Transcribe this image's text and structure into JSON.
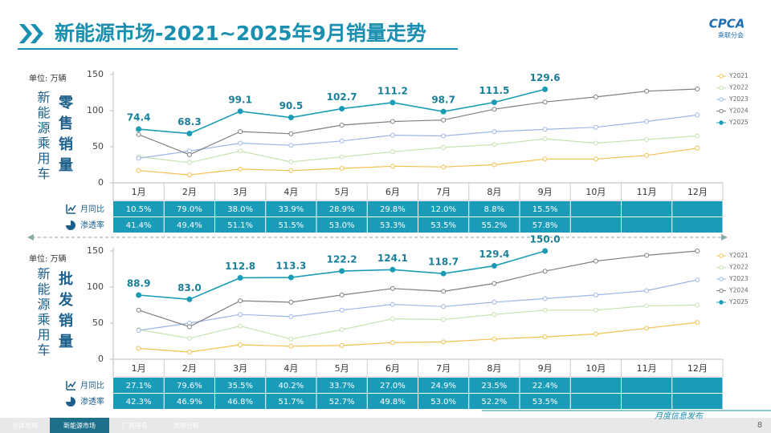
{
  "header": {
    "title": "新能源市场-2021~2025年9月销量走势",
    "logo": "CPCA",
    "logo_sub": "乘联分会"
  },
  "unit": "单位: 万辆",
  "side_label": "新能源乘用车",
  "chart_data": [
    {
      "type": "line",
      "label": "零售销量",
      "categories": [
        "1月",
        "2月",
        "3月",
        "4月",
        "5月",
        "6月",
        "7月",
        "8月",
        "9月",
        "10月",
        "11月",
        "12月"
      ],
      "ylim": [
        0,
        150
      ],
      "yticks": [
        0,
        50,
        100,
        150
      ],
      "grid": false,
      "legend": "right",
      "series": [
        {
          "name": "Y2021",
          "color": "#f2c14e",
          "marker": "open",
          "values": [
            17,
            11,
            19,
            17,
            20,
            23,
            22,
            25,
            33,
            33,
            38,
            48
          ]
        },
        {
          "name": "Y2022",
          "color": "#c6e2ae",
          "marker": "open",
          "values": [
            36,
            28,
            44,
            29,
            36,
            43,
            49,
            53,
            61,
            55,
            60,
            65
          ]
        },
        {
          "name": "Y2023",
          "color": "#9bb7e6",
          "marker": "open",
          "values": [
            34,
            44,
            55,
            52,
            58,
            66,
            65,
            71,
            74,
            77,
            85,
            94
          ]
        },
        {
          "name": "Y2024",
          "color": "#7f7f7f",
          "marker": "open",
          "values": [
            67,
            39,
            71,
            68,
            80,
            85,
            87,
            102,
            112,
            119,
            127,
            130
          ]
        },
        {
          "name": "Y2025",
          "color": "#1b9bb5",
          "marker": "filled",
          "data_labels": true,
          "values": [
            74.4,
            68.3,
            99.1,
            90.5,
            102.7,
            111.2,
            98.7,
            111.5,
            129.6,
            null,
            null,
            null
          ]
        }
      ],
      "table": {
        "rows": [
          {
            "label": "月同比",
            "cells": [
              "10.5%",
              "79.0%",
              "38.0%",
              "33.9%",
              "28.9%",
              "29.8%",
              "12.0%",
              "8.8%",
              "15.5%"
            ]
          },
          {
            "label": "渗透率",
            "cells": [
              "41.4%",
              "49.4%",
              "51.1%",
              "51.5%",
              "53.0%",
              "53.3%",
              "53.5%",
              "55.2%",
              "57.8%"
            ]
          }
        ]
      }
    },
    {
      "type": "line",
      "label": "批发销量",
      "categories": [
        "1月",
        "2月",
        "3月",
        "4月",
        "5月",
        "6月",
        "7月",
        "8月",
        "9月",
        "10月",
        "11月",
        "12月"
      ],
      "ylim": [
        0,
        150
      ],
      "yticks": [
        0,
        50,
        100,
        150
      ],
      "grid": false,
      "legend": "right",
      "series": [
        {
          "name": "Y2021",
          "color": "#f2c14e",
          "marker": "open",
          "values": [
            15,
            10,
            20,
            18,
            19,
            23,
            24,
            28,
            31,
            35,
            43,
            51
          ]
        },
        {
          "name": "Y2022",
          "color": "#c6e2ae",
          "marker": "open",
          "values": [
            41,
            29,
            46,
            28,
            41,
            56,
            55,
            62,
            68,
            68,
            74,
            75
          ]
        },
        {
          "name": "Y2023",
          "color": "#9bb7e6",
          "marker": "open",
          "values": [
            40,
            50,
            62,
            59,
            68,
            76,
            73,
            79,
            84,
            89,
            95,
            110
          ]
        },
        {
          "name": "Y2024",
          "color": "#7f7f7f",
          "marker": "open",
          "values": [
            68,
            45,
            81,
            79,
            89,
            98,
            94,
            105,
            122,
            136,
            144,
            150
          ]
        },
        {
          "name": "Y2025",
          "color": "#1b9bb5",
          "marker": "filled",
          "data_labels": true,
          "values": [
            88.9,
            83.0,
            112.8,
            113.3,
            122.2,
            124.1,
            118.7,
            129.4,
            150.0,
            null,
            null,
            null
          ],
          "value_labels": [
            "88.9",
            "83.0",
            "112.8",
            "113.3",
            "122.2",
            "124.1",
            "118.7",
            "129.4",
            "150.0",
            null,
            null,
            null
          ]
        }
      ],
      "table": {
        "rows": [
          {
            "label": "月同比",
            "cells": [
              "27.1%",
              "79.6%",
              "35.5%",
              "40.2%",
              "33.7%",
              "27.0%",
              "24.9%",
              "23.5%",
              "22.4%"
            ]
          },
          {
            "label": "渗透率",
            "cells": [
              "42.3%",
              "46.9%",
              "46.8%",
              "51.7%",
              "52.7%",
              "49.8%",
              "53.0%",
              "52.2%",
              "53.5%"
            ]
          }
        ]
      }
    }
  ],
  "footer": {
    "tabs": [
      "总体市场",
      "新能源市场",
      "厂商排名",
      "市场分析"
    ],
    "note": "月度信息发布",
    "page": "8"
  }
}
